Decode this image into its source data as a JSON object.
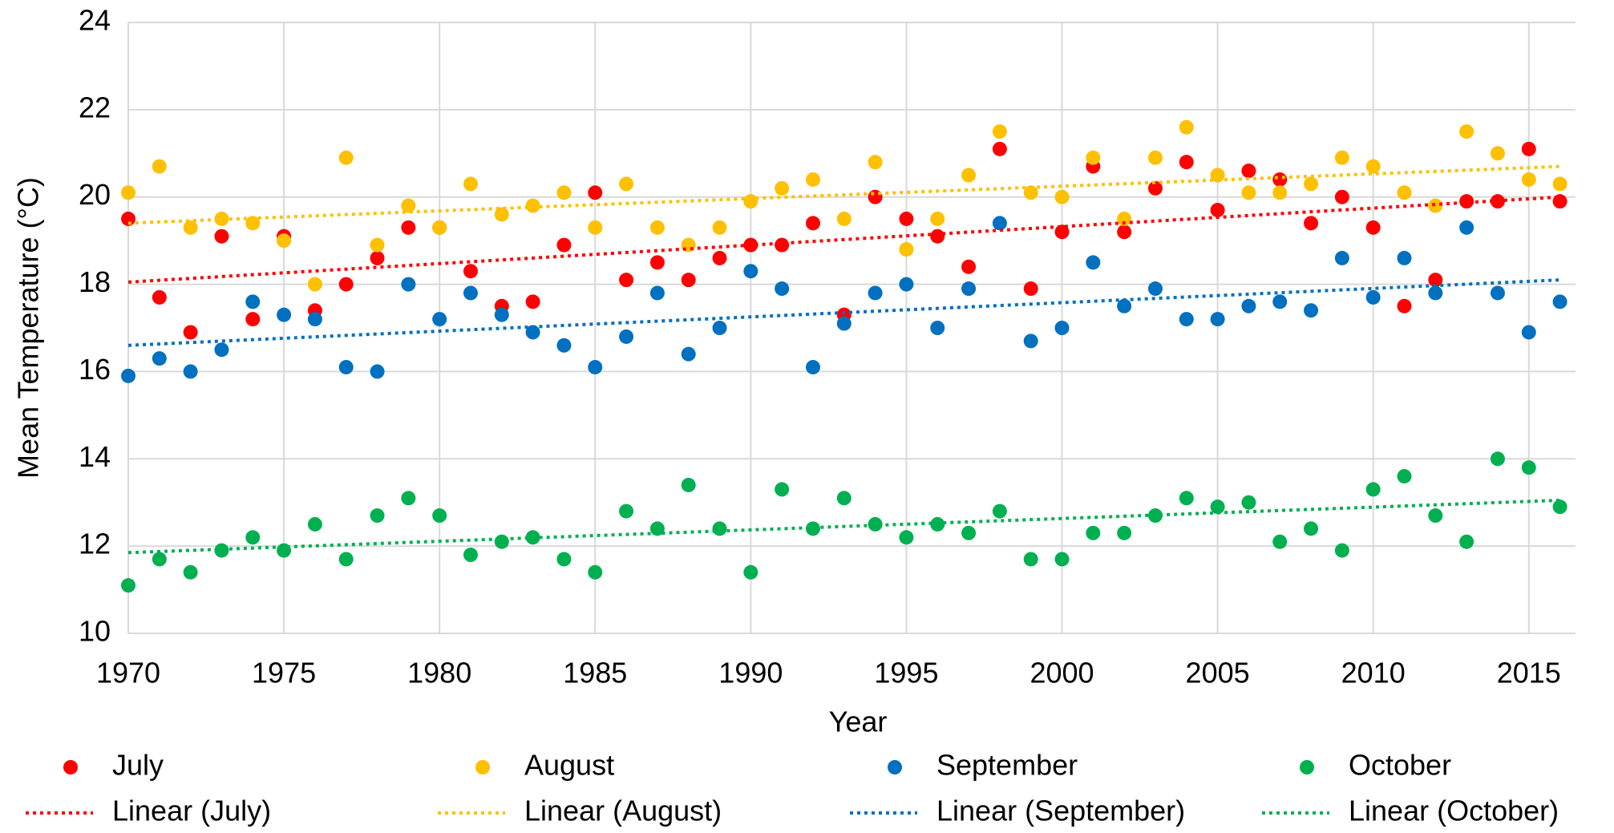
{
  "chart_data": {
    "type": "scatter",
    "xlabel": "Year",
    "ylabel": "Mean Temperature (°C)",
    "x": [
      1970,
      1971,
      1972,
      1973,
      1974,
      1975,
      1976,
      1977,
      1978,
      1979,
      1980,
      1981,
      1982,
      1983,
      1984,
      1985,
      1986,
      1987,
      1988,
      1989,
      1990,
      1991,
      1992,
      1993,
      1994,
      1995,
      1996,
      1997,
      1998,
      1999,
      2000,
      2001,
      2002,
      2003,
      2004,
      2005,
      2006,
      2007,
      2008,
      2009,
      2010,
      2011,
      2012,
      2013,
      2014,
      2015,
      2016
    ],
    "xlim": [
      1970,
      2016.5
    ],
    "xticks": [
      1970,
      1975,
      1980,
      1985,
      1990,
      1995,
      2000,
      2005,
      2010,
      2015
    ],
    "ylim": [
      10,
      24
    ],
    "yticks": [
      10,
      12,
      14,
      16,
      18,
      20,
      22,
      24
    ],
    "grid": true,
    "series": [
      {
        "name": "July",
        "type": "scatter",
        "color": "#ff0000",
        "values": [
          19.5,
          17.7,
          16.9,
          19.1,
          17.2,
          19.1,
          17.4,
          18.0,
          18.6,
          19.3,
          19.3,
          18.3,
          17.5,
          17.6,
          18.9,
          20.1,
          18.1,
          18.5,
          18.1,
          18.6,
          18.9,
          18.9,
          19.4,
          17.3,
          20.0,
          19.5,
          19.1,
          18.4,
          21.1,
          17.9,
          19.2,
          20.7,
          19.2,
          20.2,
          20.8,
          19.7,
          20.6,
          20.4,
          19.4,
          20.0,
          19.3,
          17.5,
          18.1,
          19.9,
          19.9,
          21.1,
          19.9
        ]
      },
      {
        "name": "August",
        "type": "scatter",
        "color": "#ffc000",
        "values": [
          20.1,
          20.7,
          19.3,
          19.5,
          19.4,
          19.0,
          18.0,
          20.9,
          18.9,
          19.8,
          19.3,
          20.3,
          19.6,
          19.8,
          20.1,
          19.3,
          20.3,
          19.3,
          18.9,
          19.3,
          19.9,
          20.2,
          20.4,
          19.5,
          20.8,
          18.8,
          19.5,
          20.5,
          21.5,
          20.1,
          20.0,
          20.9,
          19.5,
          20.9,
          21.6,
          20.5,
          20.1,
          20.1,
          20.3,
          20.9,
          20.7,
          20.1,
          19.8,
          21.5,
          21.0,
          20.4,
          20.3
        ]
      },
      {
        "name": "September",
        "type": "scatter",
        "color": "#0070c0",
        "values": [
          15.9,
          16.3,
          16.0,
          16.5,
          17.6,
          17.3,
          17.2,
          16.1,
          16.0,
          18.0,
          17.2,
          17.8,
          17.3,
          16.9,
          16.6,
          16.1,
          16.8,
          17.8,
          16.4,
          17.0,
          18.3,
          17.9,
          16.1,
          17.1,
          17.8,
          18.0,
          17.0,
          17.9,
          19.4,
          16.7,
          17.0,
          18.5,
          17.5,
          17.9,
          17.2,
          17.2,
          17.5,
          17.6,
          17.4,
          18.6,
          17.7,
          18.6,
          17.8,
          19.3,
          17.8,
          16.9,
          17.6
        ]
      },
      {
        "name": "October",
        "type": "scatter",
        "color": "#00b050",
        "values": [
          11.1,
          11.7,
          11.4,
          11.9,
          12.2,
          11.9,
          12.5,
          11.7,
          12.7,
          13.1,
          12.7,
          11.8,
          12.1,
          12.2,
          11.7,
          11.4,
          12.8,
          12.4,
          13.4,
          12.4,
          11.4,
          13.3,
          12.4,
          13.1,
          12.5,
          12.2,
          12.5,
          12.3,
          12.8,
          11.7,
          11.7,
          12.3,
          12.3,
          12.7,
          13.1,
          12.9,
          13.0,
          12.1,
          12.4,
          11.9,
          13.3,
          13.6,
          12.7,
          12.1,
          14.0,
          13.8,
          12.9
        ]
      },
      {
        "name": "Linear (July)",
        "type": "line",
        "dash": "dotted",
        "color": "#ff0000",
        "x": [
          1970,
          2016
        ],
        "values": [
          18.05,
          20.0
        ]
      },
      {
        "name": "Linear (August)",
        "type": "line",
        "dash": "dotted",
        "color": "#ffc000",
        "x": [
          1970,
          2016
        ],
        "values": [
          19.4,
          20.7
        ]
      },
      {
        "name": "Linear (September)",
        "type": "line",
        "dash": "dotted",
        "color": "#0070c0",
        "x": [
          1970,
          2016
        ],
        "values": [
          16.6,
          18.1
        ]
      },
      {
        "name": "Linear (October)",
        "type": "line",
        "dash": "dotted",
        "color": "#00b050",
        "x": [
          1970,
          2016
        ],
        "values": [
          11.85,
          13.05
        ]
      }
    ]
  }
}
